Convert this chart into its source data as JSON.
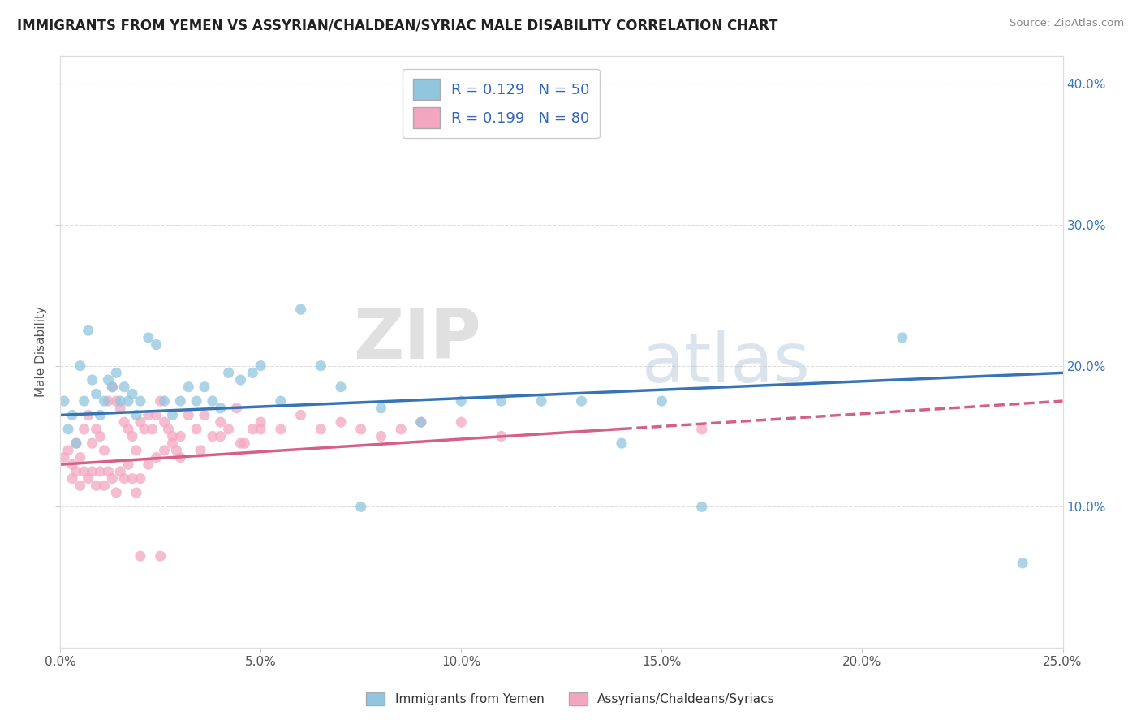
{
  "title": "IMMIGRANTS FROM YEMEN VS ASSYRIAN/CHALDEAN/SYRIAC MALE DISABILITY CORRELATION CHART",
  "source": "Source: ZipAtlas.com",
  "ylabel": "Male Disability",
  "xlim": [
    0.0,
    0.25
  ],
  "ylim": [
    0.0,
    0.42
  ],
  "xtick_labels": [
    "0.0%",
    "",
    "",
    "",
    "",
    "",
    "5.0%",
    "",
    "",
    "",
    "",
    "",
    "10.0%",
    "",
    "",
    "",
    "",
    "",
    "15.0%",
    "",
    "",
    "",
    "",
    "",
    "20.0%",
    "",
    "",
    "",
    "",
    "",
    "25.0%"
  ],
  "xtick_vals": [
    0.0,
    0.05,
    0.1,
    0.15,
    0.2,
    0.25
  ],
  "xtick_display": [
    "0.0%",
    "5.0%",
    "10.0%",
    "15.0%",
    "20.0%",
    "25.0%"
  ],
  "ytick_vals": [
    0.1,
    0.2,
    0.3,
    0.4
  ],
  "ytick_labels_right": [
    "10.0%",
    "20.0%",
    "30.0%",
    "40.0%"
  ],
  "legend_entry1": "R = 0.129   N = 50",
  "legend_entry2": "R = 0.199   N = 80",
  "legend_label1": "Immigrants from Yemen",
  "legend_label2": "Assyrians/Chaldeans/Syriacs",
  "color_blue": "#92c5de",
  "color_pink": "#f4a6c0",
  "color_blue_line": "#3575b5",
  "color_pink_line": "#d45f8a",
  "watermark_zip": "ZIP",
  "watermark_atlas": "atlas",
  "blue_scatter_x": [
    0.001,
    0.002,
    0.003,
    0.004,
    0.005,
    0.006,
    0.007,
    0.008,
    0.009,
    0.01,
    0.011,
    0.012,
    0.013,
    0.014,
    0.015,
    0.016,
    0.017,
    0.018,
    0.019,
    0.02,
    0.022,
    0.024,
    0.026,
    0.028,
    0.03,
    0.032,
    0.034,
    0.036,
    0.038,
    0.04,
    0.042,
    0.045,
    0.048,
    0.05,
    0.055,
    0.06,
    0.065,
    0.07,
    0.075,
    0.08,
    0.09,
    0.1,
    0.11,
    0.12,
    0.13,
    0.14,
    0.15,
    0.16,
    0.21,
    0.24
  ],
  "blue_scatter_y": [
    0.175,
    0.155,
    0.165,
    0.145,
    0.2,
    0.175,
    0.225,
    0.19,
    0.18,
    0.165,
    0.175,
    0.19,
    0.185,
    0.195,
    0.175,
    0.185,
    0.175,
    0.18,
    0.165,
    0.175,
    0.22,
    0.215,
    0.175,
    0.165,
    0.175,
    0.185,
    0.175,
    0.185,
    0.175,
    0.17,
    0.195,
    0.19,
    0.195,
    0.2,
    0.175,
    0.24,
    0.2,
    0.185,
    0.1,
    0.17,
    0.16,
    0.175,
    0.175,
    0.175,
    0.175,
    0.145,
    0.175,
    0.1,
    0.22,
    0.06
  ],
  "pink_scatter_x": [
    0.001,
    0.002,
    0.003,
    0.004,
    0.005,
    0.006,
    0.007,
    0.008,
    0.009,
    0.01,
    0.011,
    0.012,
    0.013,
    0.014,
    0.015,
    0.016,
    0.017,
    0.018,
    0.019,
    0.02,
    0.021,
    0.022,
    0.023,
    0.024,
    0.025,
    0.026,
    0.027,
    0.028,
    0.029,
    0.03,
    0.032,
    0.034,
    0.036,
    0.038,
    0.04,
    0.042,
    0.044,
    0.046,
    0.048,
    0.05,
    0.003,
    0.004,
    0.005,
    0.006,
    0.007,
    0.008,
    0.009,
    0.01,
    0.011,
    0.012,
    0.013,
    0.014,
    0.015,
    0.016,
    0.017,
    0.018,
    0.019,
    0.02,
    0.022,
    0.024,
    0.026,
    0.028,
    0.03,
    0.035,
    0.04,
    0.045,
    0.05,
    0.055,
    0.06,
    0.065,
    0.07,
    0.075,
    0.08,
    0.085,
    0.09,
    0.1,
    0.11,
    0.16,
    0.02,
    0.025
  ],
  "pink_scatter_y": [
    0.135,
    0.14,
    0.13,
    0.145,
    0.135,
    0.155,
    0.165,
    0.145,
    0.155,
    0.15,
    0.14,
    0.175,
    0.185,
    0.175,
    0.17,
    0.16,
    0.155,
    0.15,
    0.14,
    0.16,
    0.155,
    0.165,
    0.155,
    0.165,
    0.175,
    0.16,
    0.155,
    0.15,
    0.14,
    0.15,
    0.165,
    0.155,
    0.165,
    0.15,
    0.16,
    0.155,
    0.17,
    0.145,
    0.155,
    0.155,
    0.12,
    0.125,
    0.115,
    0.125,
    0.12,
    0.125,
    0.115,
    0.125,
    0.115,
    0.125,
    0.12,
    0.11,
    0.125,
    0.12,
    0.13,
    0.12,
    0.11,
    0.12,
    0.13,
    0.135,
    0.14,
    0.145,
    0.135,
    0.14,
    0.15,
    0.145,
    0.16,
    0.155,
    0.165,
    0.155,
    0.16,
    0.155,
    0.15,
    0.155,
    0.16,
    0.16,
    0.15,
    0.155,
    0.065,
    0.065
  ],
  "blue_trend": [
    0.165,
    0.195
  ],
  "pink_trend_solid": [
    0.0,
    0.14
  ],
  "pink_trend_dashed": [
    0.14,
    0.25
  ],
  "pink_trend_y": [
    0.13,
    0.175
  ],
  "background_color": "#ffffff",
  "grid_color": "#dddddd"
}
